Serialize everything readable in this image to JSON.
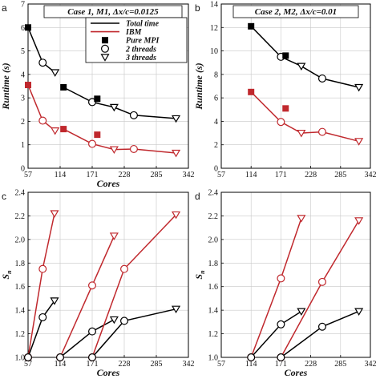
{
  "chart_data": [
    {
      "panel_label": "a",
      "type": "line",
      "title": "Case 1, M1, Δx/c=0.0125",
      "xlabel": "Cores",
      "ylabel": "Runtime (s)",
      "xlim": [
        57,
        342
      ],
      "ylim": [
        0,
        7
      ],
      "xticks": [
        "57",
        "114",
        "171",
        "228",
        "285",
        "342"
      ],
      "yticks": [
        "0",
        "1",
        "2",
        "3",
        "4",
        "5",
        "6",
        "7"
      ],
      "legend": {
        "placement": "top-right",
        "entries": [
          {
            "label": "Total time",
            "marker": "line",
            "color": "#000000"
          },
          {
            "label": "IBM",
            "marker": "line",
            "color": "#c0282d"
          },
          {
            "label": "Pure MPI",
            "marker": "square",
            "color": "#000000"
          },
          {
            "label": "2 threads",
            "marker": "circle",
            "color": "#000000"
          },
          {
            "label": "3 threads",
            "marker": "triangle",
            "color": "#000000"
          }
        ]
      },
      "series": [
        {
          "color": "#000000",
          "points": [
            [
              57,
              6.0,
              "square"
            ],
            [
              83,
              4.5,
              "circle"
            ],
            [
              105,
              4.08,
              "triangle"
            ]
          ]
        },
        {
          "color": "#000000",
          "points": [
            [
              120,
              3.45,
              "square"
            ],
            [
              171,
              2.82,
              "circle"
            ],
            [
              210,
              2.6,
              "triangle"
            ],
            [
              245,
              2.26,
              "circle"
            ],
            [
              320,
              2.12,
              "triangle"
            ]
          ]
        },
        {
          "color": "#c0282d",
          "points": [
            [
              57,
              3.55,
              "square"
            ],
            [
              83,
              2.03,
              "circle"
            ],
            [
              105,
              1.6,
              "triangle"
            ]
          ]
        },
        {
          "color": "#c0282d",
          "points": [
            [
              120,
              1.67,
              "square"
            ],
            [
              171,
              1.04,
              "circle"
            ],
            [
              210,
              0.8,
              "triangle"
            ],
            [
              245,
              0.82,
              "circle"
            ],
            [
              320,
              0.65,
              "triangle"
            ]
          ]
        }
      ],
      "extra_markers": [
        {
          "x": 180,
          "y": 2.96,
          "marker": "square",
          "color": "#000000"
        },
        {
          "x": 180,
          "y": 1.43,
          "marker": "square",
          "color": "#c0282d"
        }
      ]
    },
    {
      "panel_label": "b",
      "type": "line",
      "title": "Case 2, M2, Δx/c=0.01",
      "xlabel": "",
      "ylabel": "Runtime (s)",
      "xlim": [
        57,
        342
      ],
      "ylim": [
        0,
        14
      ],
      "xticks": [
        "57",
        "114",
        "171",
        "228",
        "285",
        "342"
      ],
      "yticks": [
        "0",
        "2",
        "4",
        "6",
        "8",
        "10",
        "12",
        "14"
      ],
      "series": [
        {
          "color": "#000000",
          "points": [
            [
              114,
              12.1,
              "square"
            ],
            [
              171,
              9.5,
              "circle"
            ],
            [
              210,
              8.7,
              "triangle"
            ],
            [
              250,
              7.65,
              "circle"
            ],
            [
              320,
              6.9,
              "triangle"
            ]
          ]
        },
        {
          "color": "#c0282d",
          "points": [
            [
              114,
              6.5,
              "square"
            ],
            [
              171,
              3.95,
              "circle"
            ],
            [
              210,
              3.0,
              "triangle"
            ],
            [
              250,
              3.1,
              "circle"
            ],
            [
              320,
              2.3,
              "triangle"
            ]
          ]
        }
      ],
      "extra_markers": [
        {
          "x": 180,
          "y": 9.6,
          "marker": "square",
          "color": "#000000"
        },
        {
          "x": 180,
          "y": 5.1,
          "marker": "square",
          "color": "#c0282d"
        }
      ]
    },
    {
      "panel_label": "c",
      "type": "line",
      "title": "",
      "xlabel": "Cores",
      "ylabel": "Sn",
      "xlim": [
        57,
        342
      ],
      "ylim": [
        1.0,
        2.4
      ],
      "xticks": [
        "57",
        "114",
        "171",
        "228",
        "285",
        "342"
      ],
      "yticks": [
        "1.0",
        "1.2",
        "1.4",
        "1.6",
        "1.8",
        "2.0",
        "2.2",
        "2.4"
      ],
      "series": [
        {
          "color": "#c0282d",
          "points": [
            [
              57,
              1.0,
              "circle"
            ],
            [
              83,
              1.75,
              "circle"
            ],
            [
              104,
              2.22,
              "triangle"
            ]
          ]
        },
        {
          "color": "#000000",
          "points": [
            [
              57,
              1.0,
              "circle"
            ],
            [
              83,
              1.34,
              "circle"
            ],
            [
              104,
              1.48,
              "triangle"
            ]
          ]
        },
        {
          "color": "#c0282d",
          "points": [
            [
              114,
              1.0,
              "circle"
            ],
            [
              171,
              1.61,
              "circle"
            ],
            [
              210,
              2.03,
              "triangle"
            ]
          ]
        },
        {
          "color": "#000000",
          "points": [
            [
              114,
              1.0,
              "circle"
            ],
            [
              171,
              1.22,
              "circle"
            ],
            [
              210,
              1.32,
              "triangle"
            ]
          ]
        },
        {
          "color": "#c0282d",
          "points": [
            [
              171,
              1.0,
              "circle"
            ],
            [
              228,
              1.75,
              "circle"
            ],
            [
              320,
              2.21,
              "triangle"
            ]
          ]
        },
        {
          "color": "#000000",
          "points": [
            [
              171,
              1.0,
              "circle"
            ],
            [
              228,
              1.31,
              "circle"
            ],
            [
              320,
              1.41,
              "triangle"
            ]
          ]
        }
      ]
    },
    {
      "panel_label": "d",
      "type": "line",
      "title": "",
      "xlabel": "Cores",
      "ylabel": "Sn",
      "xlim": [
        57,
        342
      ],
      "ylim": [
        1.0,
        2.4
      ],
      "xticks": [
        "57",
        "114",
        "171",
        "228",
        "285",
        "342"
      ],
      "yticks": [
        "1.0",
        "1.2",
        "1.4",
        "1.6",
        "1.8",
        "2.0",
        "2.2",
        "2.4"
      ],
      "series": [
        {
          "color": "#c0282d",
          "points": [
            [
              114,
              1.0,
              "circle"
            ],
            [
              171,
              1.67,
              "circle"
            ],
            [
              210,
              2.18,
              "triangle"
            ]
          ]
        },
        {
          "color": "#000000",
          "points": [
            [
              114,
              1.0,
              "circle"
            ],
            [
              171,
              1.28,
              "circle"
            ],
            [
              210,
              1.39,
              "triangle"
            ]
          ]
        },
        {
          "color": "#c0282d",
          "points": [
            [
              171,
              1.0,
              "circle"
            ],
            [
              250,
              1.64,
              "circle"
            ],
            [
              320,
              2.16,
              "triangle"
            ]
          ]
        },
        {
          "color": "#000000",
          "points": [
            [
              171,
              1.0,
              "circle"
            ],
            [
              250,
              1.26,
              "circle"
            ],
            [
              320,
              1.39,
              "triangle"
            ]
          ]
        }
      ]
    }
  ]
}
